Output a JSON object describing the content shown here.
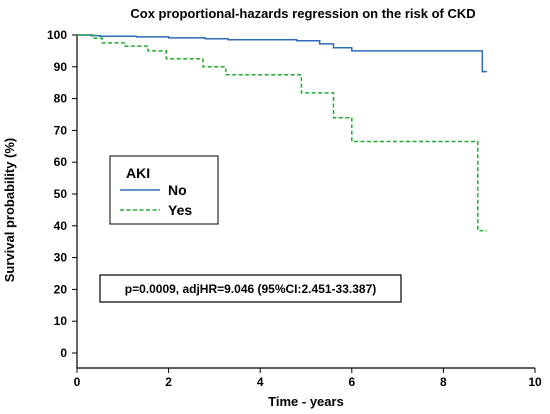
{
  "chart_data": {
    "type": "line",
    "subtype": "kaplan-meier step",
    "title": "Cox proportional-hazards regression on the risk of CKD",
    "xlabel": "Time - years",
    "ylabel": "Survival probability (%)",
    "xlim": [
      0,
      10
    ],
    "ylim": [
      0,
      100
    ],
    "xticks": [
      0,
      2,
      4,
      6,
      8,
      10
    ],
    "yticks": [
      0,
      10,
      20,
      30,
      40,
      50,
      60,
      70,
      80,
      90,
      100
    ],
    "grid": false,
    "legend": {
      "title": "AKI",
      "placement": "middle-left",
      "entries": [
        "No",
        "Yes"
      ]
    },
    "annotation": "p=0.0009, adjHR=9.046 (95%CI:2.451-33.387)",
    "series": [
      {
        "name": "No",
        "color": "#2e6bb5",
        "dash": "solid",
        "x": [
          0,
          0.3,
          0.5,
          1.3,
          2.0,
          2.8,
          3.3,
          4.8,
          5.3,
          5.6,
          6.0,
          8.7,
          8.85,
          8.95
        ],
        "y": [
          100,
          99.8,
          99.6,
          99.4,
          99.1,
          98.8,
          98.5,
          98.2,
          97.2,
          96.0,
          95.0,
          95.0,
          88.5,
          88.5
        ]
      },
      {
        "name": "Yes",
        "color": "#1fae2c",
        "dash": "dashed",
        "x": [
          0,
          0.35,
          0.55,
          1.05,
          1.55,
          1.95,
          2.45,
          2.75,
          3.25,
          4.9,
          5.6,
          6.0,
          8.75,
          8.95
        ],
        "y": [
          100,
          99,
          97.5,
          96.5,
          95,
          92.5,
          92.5,
          90,
          87.5,
          81.8,
          74,
          66.5,
          38.5,
          38.5
        ]
      }
    ]
  }
}
